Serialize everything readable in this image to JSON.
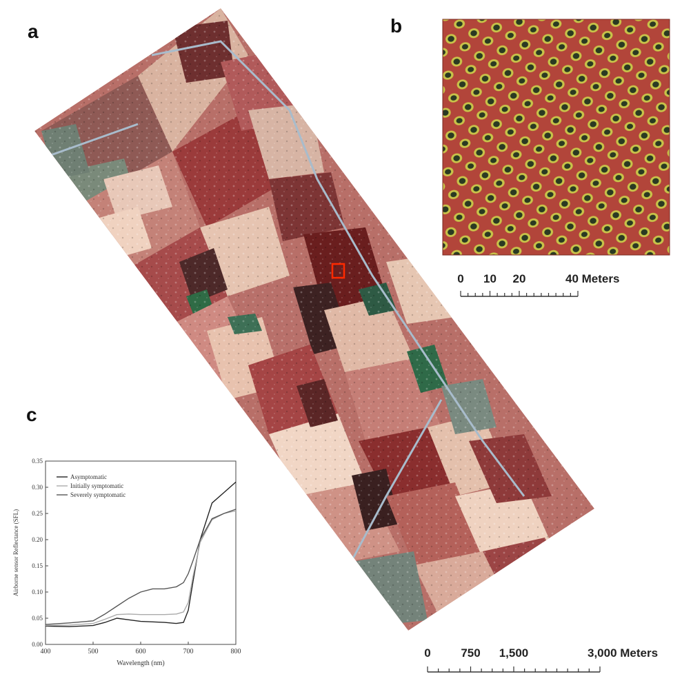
{
  "panels": {
    "a": "a",
    "b": "b",
    "c": "c"
  },
  "scale_b": {
    "ticks": [
      "0",
      "10",
      "20",
      "40 Meters"
    ],
    "tick_values": [
      0,
      10,
      20,
      40
    ],
    "max": 40
  },
  "scale_a": {
    "ticks": [
      "0",
      "750",
      "1,500",
      "3,000 Meters"
    ],
    "tick_values": [
      0,
      750,
      1500,
      3000
    ],
    "max": 3000
  },
  "colors": {
    "field_red": "#9b3b3b",
    "field_beige": "#e8c6b0",
    "field_dark": "#5a2a2a",
    "field_green": "#3c6a55",
    "road": "#a9b9c9",
    "inset_bg": "#b2453a",
    "tree_ring": "#c9c24a",
    "tree_core": "#2b3a22",
    "marker": "#ff2a00"
  },
  "chart_data": {
    "type": "line",
    "xlabel": "Wavelength (nm)",
    "ylabel": "Airborne sensor Reflectance (SFL)",
    "xlim": [
      400,
      800
    ],
    "ylim": [
      0,
      0.35
    ],
    "xticks": [
      "400",
      "500",
      "600",
      "700",
      "800"
    ],
    "yticks": [
      "0.00",
      "0.05",
      "0.10",
      "0.15",
      "0.20",
      "0.25",
      "0.30",
      "0.35"
    ],
    "legend_position": "top-left",
    "x": [
      400,
      450,
      500,
      525,
      550,
      575,
      600,
      625,
      650,
      675,
      690,
      700,
      710,
      725,
      750,
      775,
      800
    ],
    "series": [
      {
        "name": "Asymptomatic",
        "color": "#222222",
        "values": [
          0.035,
          0.034,
          0.036,
          0.042,
          0.05,
          0.047,
          0.044,
          0.043,
          0.042,
          0.04,
          0.042,
          0.065,
          0.12,
          0.2,
          0.27,
          0.29,
          0.31
        ]
      },
      {
        "name": "Initially symptomatic",
        "color": "#aaaaaa",
        "values": [
          0.036,
          0.037,
          0.04,
          0.048,
          0.057,
          0.058,
          0.057,
          0.057,
          0.057,
          0.058,
          0.062,
          0.08,
          0.13,
          0.195,
          0.238,
          0.25,
          0.255
        ]
      },
      {
        "name": "Severely symptomatic",
        "color": "#555555",
        "values": [
          0.038,
          0.041,
          0.045,
          0.058,
          0.073,
          0.088,
          0.1,
          0.106,
          0.106,
          0.11,
          0.118,
          0.135,
          0.16,
          0.2,
          0.24,
          0.25,
          0.258
        ]
      }
    ]
  }
}
